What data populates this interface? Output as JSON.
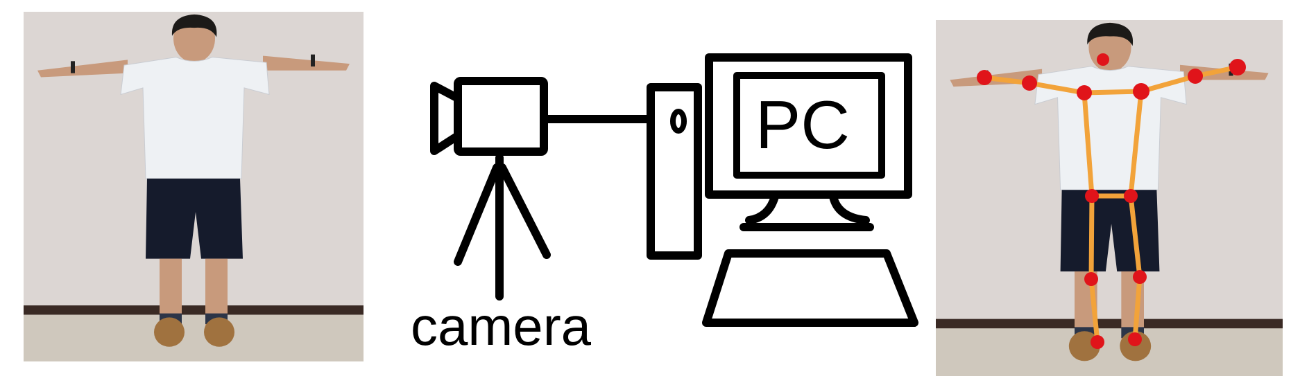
{
  "labels": {
    "camera": "camera",
    "pc": "PC"
  },
  "colors": {
    "wall": "#dcd6d3",
    "shirt": "#eef1f4",
    "shorts": "#151b2c",
    "skin": "#c89a7c",
    "hair": "#1c1a18",
    "shoe": "#a0723f",
    "baseboard": "#3a2a24",
    "floor": "#cfc8bd",
    "skeleton_line": "#f2a33a",
    "keypoint": "#e0141a",
    "icon_stroke": "#000000"
  },
  "icons": {
    "camera": "video-camera-on-tripod-icon",
    "pc": "desktop-computer-icon"
  }
}
